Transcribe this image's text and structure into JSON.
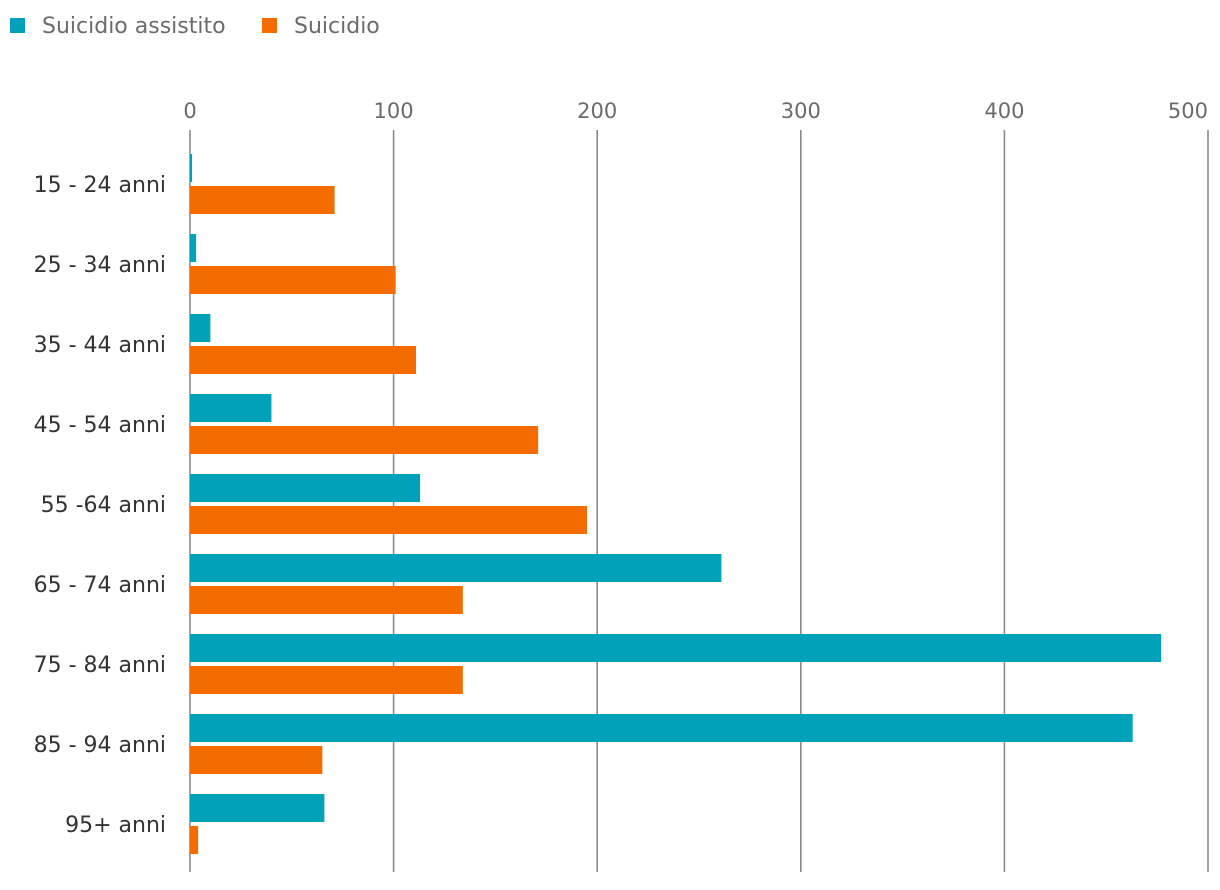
{
  "chart_data": {
    "type": "bar",
    "orientation": "horizontal",
    "categories": [
      "15 - 24 anni",
      "25 - 34 anni",
      "35 - 44 anni",
      "45 - 54 anni",
      "55 -64 anni",
      "65 - 74 anni",
      "75 - 84 anni",
      "85 - 94 anni",
      "95+ anni"
    ],
    "series": [
      {
        "name": "Suicidio assistito",
        "color": "#00a2b9",
        "values": [
          1,
          3,
          10,
          40,
          113,
          261,
          477,
          463,
          66
        ]
      },
      {
        "name": "Suicidio",
        "color": "#f46b00",
        "values": [
          71,
          101,
          111,
          171,
          195,
          134,
          134,
          65,
          4
        ]
      }
    ],
    "xlim": [
      0,
      500
    ],
    "xticks": [
      0,
      100,
      200,
      300,
      400,
      500
    ],
    "grid": true,
    "axis_position": "top",
    "legend_position": "top-left"
  }
}
